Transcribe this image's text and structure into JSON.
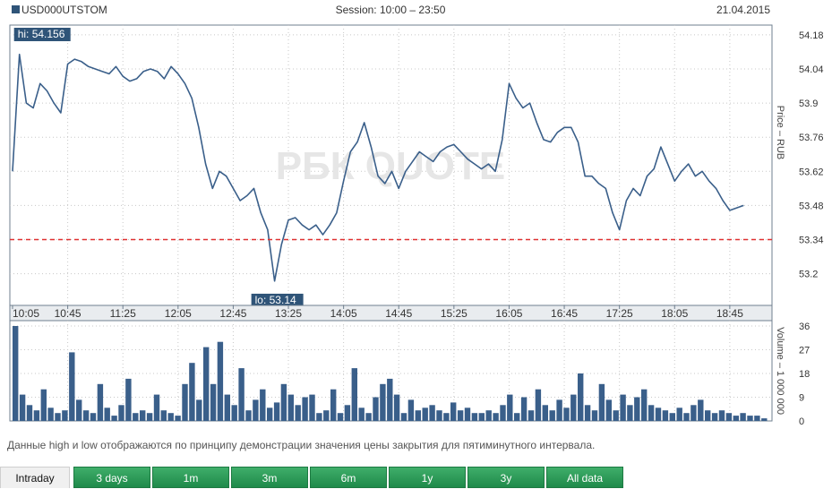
{
  "header": {
    "symbol": "USD000UTSTOM",
    "session": "Session: 10:00 – 23:50",
    "date": "21.04.2015"
  },
  "watermark": "РБК QUOTE",
  "colors": {
    "line": "#3a5f8a",
    "volume": "#3a5f8a",
    "dashed_level": "#e03030",
    "label_bg": "#2f5478",
    "tab_active_bg": "#f0f0f0",
    "tab_green": "#2b9a58"
  },
  "chart_data": [
    {
      "type": "line",
      "ylabel": "Price – RUB",
      "y_ticks": [
        "54.18",
        "54.04",
        "53.9",
        "53.76",
        "53.62",
        "53.48",
        "53.34",
        "53.2"
      ],
      "ylim": [
        53.07,
        54.22
      ],
      "x_ticks": [
        "10:05",
        "10:45",
        "11:25",
        "12:05",
        "12:45",
        "13:25",
        "14:05",
        "14:45",
        "15:25",
        "16:05",
        "16:45",
        "17:25",
        "18:05",
        "18:45"
      ],
      "hi_label": "hi: 54.156",
      "lo_label": "lo: 53.14",
      "hi": 54.156,
      "lo": 53.14,
      "dashed_level": 53.34,
      "grid": true,
      "series": [
        {
          "x": [
            "10:05",
            "10:10",
            "10:15",
            "10:20",
            "10:25",
            "10:30",
            "10:35",
            "10:40",
            "10:45",
            "10:50",
            "10:55",
            "11:00",
            "11:05",
            "11:10",
            "11:15",
            "11:20",
            "11:25",
            "11:30",
            "11:35",
            "11:40",
            "11:45",
            "11:50",
            "11:55",
            "12:00",
            "12:05",
            "12:10",
            "12:15",
            "12:20",
            "12:25",
            "12:30",
            "12:35",
            "12:40",
            "12:45",
            "12:50",
            "12:55",
            "13:00",
            "13:05",
            "13:10",
            "13:15",
            "13:20",
            "13:25",
            "13:30",
            "13:35",
            "13:40",
            "13:45",
            "13:50",
            "13:55",
            "14:00",
            "14:05",
            "14:10",
            "14:15",
            "14:20",
            "14:25",
            "14:30",
            "14:35",
            "14:40",
            "14:45",
            "14:50",
            "14:55",
            "15:00",
            "15:05",
            "15:10",
            "15:15",
            "15:20",
            "15:25",
            "15:30",
            "15:35",
            "15:40",
            "15:45",
            "15:50",
            "15:55",
            "16:00",
            "16:05",
            "16:10",
            "16:15",
            "16:20",
            "16:25",
            "16:30",
            "16:35",
            "16:40",
            "16:45",
            "16:50",
            "16:55",
            "17:00",
            "17:05",
            "17:10",
            "17:15",
            "17:20",
            "17:25",
            "17:30",
            "17:35",
            "17:40",
            "17:45",
            "17:50",
            "17:55",
            "18:00",
            "18:05",
            "18:10",
            "18:15",
            "18:20",
            "18:25",
            "18:30",
            "18:35",
            "18:40",
            "18:45",
            "18:50",
            "18:55"
          ],
          "values": [
            53.62,
            54.1,
            53.9,
            53.88,
            53.98,
            53.95,
            53.9,
            53.86,
            54.06,
            54.08,
            54.07,
            54.05,
            54.04,
            54.03,
            54.02,
            54.05,
            54.01,
            53.99,
            54.0,
            54.03,
            54.04,
            54.03,
            54.0,
            54.05,
            54.02,
            53.98,
            53.92,
            53.8,
            53.65,
            53.55,
            53.62,
            53.6,
            53.55,
            53.5,
            53.52,
            53.55,
            53.45,
            53.38,
            53.17,
            53.32,
            53.42,
            53.43,
            53.4,
            53.38,
            53.4,
            53.36,
            53.4,
            53.45,
            53.58,
            53.7,
            53.74,
            53.82,
            53.72,
            53.6,
            53.57,
            53.62,
            53.55,
            53.62,
            53.66,
            53.7,
            53.68,
            53.66,
            53.7,
            53.72,
            53.73,
            53.7,
            53.67,
            53.65,
            53.63,
            53.65,
            53.62,
            53.75,
            53.98,
            53.92,
            53.88,
            53.9,
            53.82,
            53.75,
            53.74,
            53.78,
            53.8,
            53.8,
            53.74,
            53.6,
            53.6,
            53.57,
            53.55,
            53.45,
            53.38,
            53.5,
            53.55,
            53.52,
            53.6,
            53.63,
            53.72,
            53.65,
            53.58,
            53.62,
            53.65,
            53.6,
            53.62,
            53.58,
            53.55,
            53.5,
            53.46,
            53.47,
            53.48
          ]
        }
      ]
    },
    {
      "type": "bar",
      "ylabel": "Volume – 1 000 000",
      "y_ticks": [
        "36",
        "27",
        "18",
        "9",
        "0"
      ],
      "ylim": [
        0,
        36
      ],
      "x_ticks": [
        "10:05",
        "10:45",
        "11:25",
        "12:05",
        "12:45",
        "13:25",
        "14:05",
        "14:45",
        "15:25",
        "16:05",
        "16:45",
        "17:25",
        "18:05",
        "18:45"
      ],
      "series": [
        {
          "values": [
            36,
            10,
            6,
            4,
            12,
            5,
            3,
            4,
            26,
            8,
            4,
            3,
            14,
            5,
            2,
            6,
            16,
            3,
            4,
            3,
            10,
            4,
            3,
            2,
            14,
            22,
            8,
            28,
            14,
            30,
            10,
            6,
            20,
            4,
            8,
            12,
            5,
            7,
            14,
            10,
            6,
            9,
            10,
            3,
            4,
            12,
            3,
            6,
            20,
            5,
            3,
            9,
            14,
            16,
            10,
            3,
            8,
            4,
            5,
            6,
            4,
            3,
            7,
            4,
            5,
            3,
            3,
            4,
            3,
            6,
            10,
            3,
            9,
            4,
            12,
            6,
            4,
            8,
            5,
            10,
            18,
            6,
            4,
            14,
            8,
            4,
            10,
            6,
            9,
            12,
            6,
            5,
            4,
            3,
            5,
            3,
            6,
            8,
            4,
            3,
            4,
            3,
            2,
            3,
            2,
            2,
            1
          ]
        }
      ]
    }
  ],
  "footnote": "Данные high и low отображаются по принципу демонстрации значения цены закрытия для пятиминутного интервала.",
  "tabs": [
    "Intraday",
    "3 days",
    "1m",
    "3m",
    "6m",
    "1y",
    "3y",
    "All data"
  ]
}
